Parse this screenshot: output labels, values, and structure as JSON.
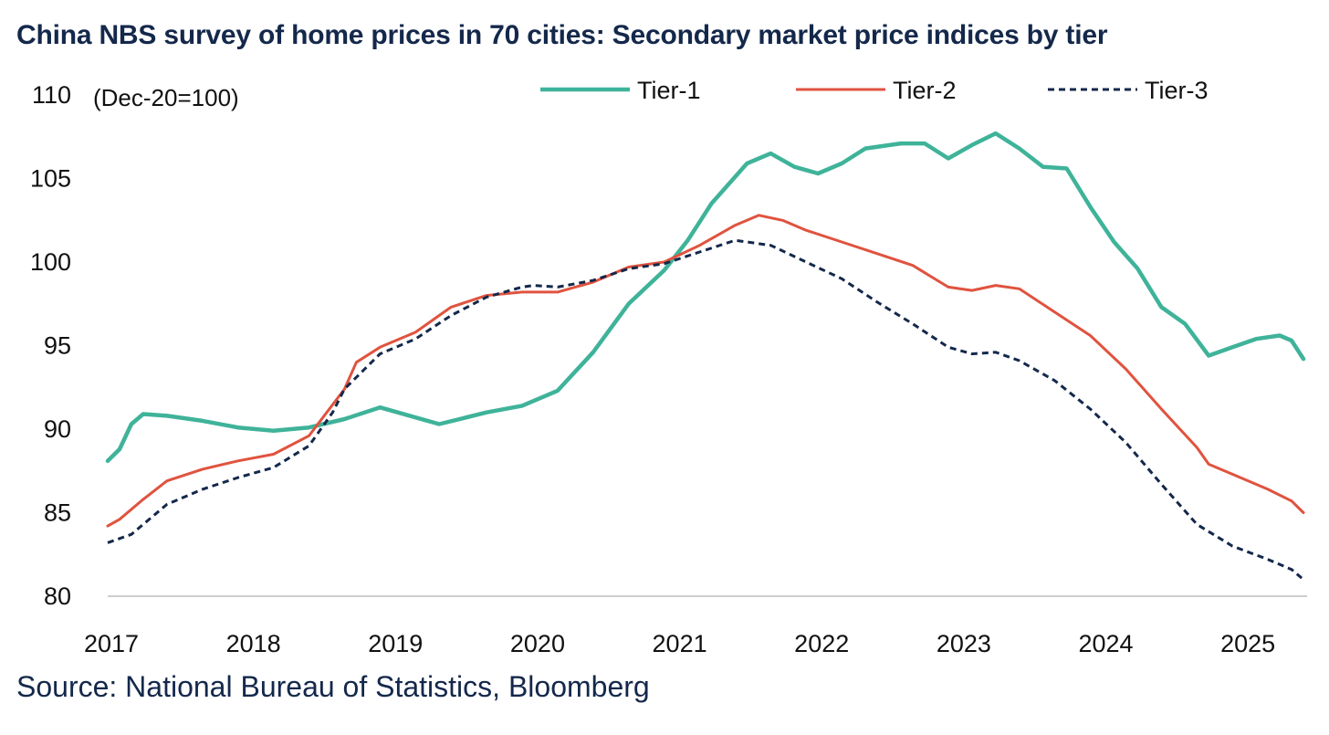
{
  "chart_data": {
    "type": "line",
    "title": "China NBS survey of home prices in 70 cities: Secondary market price indices by tier",
    "unit_note": "(Dec-20=100)",
    "source": "Source: National Bureau of Statistics, Bloomberg",
    "xlabel": "",
    "ylabel": "",
    "ylim": [
      80,
      110
    ],
    "yticks": [
      80,
      85,
      90,
      95,
      100,
      105,
      110
    ],
    "xticks": [
      2017,
      2018,
      2019,
      2020,
      2021,
      2022,
      2023,
      2024,
      2025
    ],
    "xlim": [
      "2017-01",
      "2025-06"
    ],
    "grid": false,
    "legend_position": "top",
    "series": [
      {
        "name": "Tier-1",
        "color": "#3fb39a",
        "style": "solid",
        "points": [
          [
            "2017-01",
            88.1
          ],
          [
            "2017-02",
            88.8
          ],
          [
            "2017-03",
            90.3
          ],
          [
            "2017-04",
            90.9
          ],
          [
            "2017-06",
            90.8
          ],
          [
            "2017-09",
            90.5
          ],
          [
            "2017-12",
            90.1
          ],
          [
            "2018-03",
            89.9
          ],
          [
            "2018-06",
            90.1
          ],
          [
            "2018-09",
            90.6
          ],
          [
            "2018-12",
            91.3
          ],
          [
            "2019-03",
            90.7
          ],
          [
            "2019-05",
            90.3
          ],
          [
            "2019-09",
            91.0
          ],
          [
            "2019-12",
            91.4
          ],
          [
            "2020-03",
            92.3
          ],
          [
            "2020-06",
            94.6
          ],
          [
            "2020-09",
            97.5
          ],
          [
            "2020-12",
            99.5
          ],
          [
            "2021-02",
            101.3
          ],
          [
            "2021-04",
            103.5
          ],
          [
            "2021-07",
            105.9
          ],
          [
            "2021-09",
            106.5
          ],
          [
            "2021-11",
            105.7
          ],
          [
            "2022-01",
            105.3
          ],
          [
            "2022-03",
            105.9
          ],
          [
            "2022-05",
            106.8
          ],
          [
            "2022-08",
            107.1
          ],
          [
            "2022-10",
            107.1
          ],
          [
            "2022-12",
            106.2
          ],
          [
            "2023-02",
            107.0
          ],
          [
            "2023-04",
            107.7
          ],
          [
            "2023-06",
            106.8
          ],
          [
            "2023-08",
            105.7
          ],
          [
            "2023-10",
            105.6
          ],
          [
            "2023-12",
            103.3
          ],
          [
            "2024-02",
            101.2
          ],
          [
            "2024-04",
            99.6
          ],
          [
            "2024-06",
            97.3
          ],
          [
            "2024-08",
            96.3
          ],
          [
            "2024-10",
            94.4
          ],
          [
            "2024-12",
            94.9
          ],
          [
            "2025-02",
            95.4
          ],
          [
            "2025-03",
            95.5
          ],
          [
            "2025-04",
            95.6
          ],
          [
            "2025-05",
            95.3
          ],
          [
            "2025-06",
            94.2
          ]
        ]
      },
      {
        "name": "Tier-2",
        "color": "#e0533f",
        "style": "solid",
        "points": [
          [
            "2017-01",
            84.2
          ],
          [
            "2017-02",
            84.6
          ],
          [
            "2017-04",
            85.8
          ],
          [
            "2017-06",
            86.9
          ],
          [
            "2017-09",
            87.6
          ],
          [
            "2017-12",
            88.1
          ],
          [
            "2018-03",
            88.5
          ],
          [
            "2018-06",
            89.6
          ],
          [
            "2018-09",
            92.4
          ],
          [
            "2018-10",
            94.0
          ],
          [
            "2018-12",
            94.9
          ],
          [
            "2019-03",
            95.8
          ],
          [
            "2019-06",
            97.3
          ],
          [
            "2019-09",
            98.0
          ],
          [
            "2019-12",
            98.2
          ],
          [
            "2020-03",
            98.2
          ],
          [
            "2020-06",
            98.8
          ],
          [
            "2020-09",
            99.7
          ],
          [
            "2020-12",
            100.0
          ],
          [
            "2021-03",
            101.0
          ],
          [
            "2021-06",
            102.2
          ],
          [
            "2021-08",
            102.8
          ],
          [
            "2021-10",
            102.5
          ],
          [
            "2021-12",
            101.9
          ],
          [
            "2022-03",
            101.2
          ],
          [
            "2022-06",
            100.5
          ],
          [
            "2022-09",
            99.8
          ],
          [
            "2022-12",
            98.5
          ],
          [
            "2023-02",
            98.3
          ],
          [
            "2023-04",
            98.6
          ],
          [
            "2023-06",
            98.4
          ],
          [
            "2023-09",
            97.0
          ],
          [
            "2023-12",
            95.6
          ],
          [
            "2024-03",
            93.6
          ],
          [
            "2024-06",
            91.2
          ],
          [
            "2024-09",
            88.9
          ],
          [
            "2024-10",
            87.9
          ],
          [
            "2024-12",
            87.3
          ],
          [
            "2025-03",
            86.4
          ],
          [
            "2025-05",
            85.7
          ],
          [
            "2025-06",
            85.0
          ]
        ]
      },
      {
        "name": "Tier-3",
        "color": "#14284b",
        "style": "dashed",
        "points": [
          [
            "2017-01",
            83.2
          ],
          [
            "2017-03",
            83.7
          ],
          [
            "2017-06",
            85.5
          ],
          [
            "2017-09",
            86.4
          ],
          [
            "2017-12",
            87.1
          ],
          [
            "2018-03",
            87.7
          ],
          [
            "2018-06",
            89.0
          ],
          [
            "2018-08",
            91.0
          ],
          [
            "2018-09",
            92.4
          ],
          [
            "2018-12",
            94.5
          ],
          [
            "2019-03",
            95.4
          ],
          [
            "2019-06",
            96.8
          ],
          [
            "2019-09",
            97.9
          ],
          [
            "2019-12",
            98.5
          ],
          [
            "2020-01",
            98.6
          ],
          [
            "2020-03",
            98.5
          ],
          [
            "2020-06",
            98.9
          ],
          [
            "2020-09",
            99.6
          ],
          [
            "2020-12",
            99.9
          ],
          [
            "2021-03",
            100.6
          ],
          [
            "2021-06",
            101.3
          ],
          [
            "2021-09",
            101.0
          ],
          [
            "2021-12",
            100.0
          ],
          [
            "2022-03",
            99.0
          ],
          [
            "2022-06",
            97.6
          ],
          [
            "2022-09",
            96.3
          ],
          [
            "2022-12",
            94.9
          ],
          [
            "2023-02",
            94.5
          ],
          [
            "2023-04",
            94.6
          ],
          [
            "2023-06",
            94.1
          ],
          [
            "2023-09",
            92.9
          ],
          [
            "2023-12",
            91.2
          ],
          [
            "2024-03",
            89.2
          ],
          [
            "2024-06",
            86.7
          ],
          [
            "2024-09",
            84.3
          ],
          [
            "2024-12",
            83.0
          ],
          [
            "2025-03",
            82.2
          ],
          [
            "2025-05",
            81.6
          ],
          [
            "2025-06",
            81.0
          ]
        ]
      }
    ]
  }
}
